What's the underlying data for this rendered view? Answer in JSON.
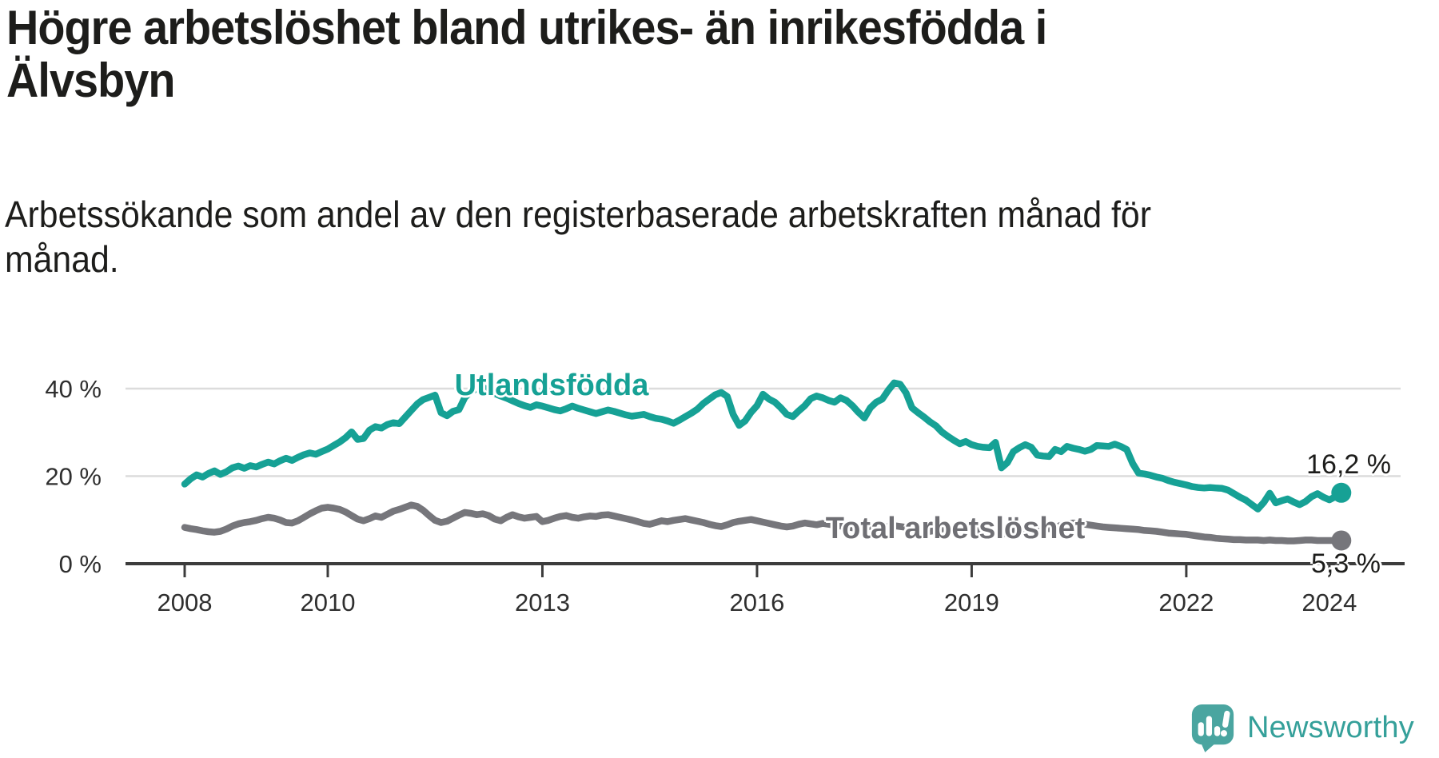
{
  "header": {
    "title_line1": "Högre arbetslöshet bland utrikes- än inrikesfödda i",
    "title_line2": "Älvsbyn",
    "subtitle_line1": "Arbetssökande som andel av den registerbaserade arbetskraften månad för",
    "subtitle_line2": "månad."
  },
  "footer": {
    "brand": "Newsworthy"
  },
  "colors": {
    "accent_teal": "#16a195",
    "logo_teal": "#4aa5a0",
    "series_gray": "#76767b",
    "grid": "#dcdcdc",
    "axis": "#3c3c3c",
    "text": "#1d1d1b"
  },
  "chart_data": {
    "type": "line",
    "title": "Högre arbetslöshet bland utrikes- än inrikesfödda i Älvsbyn",
    "subtitle": "Arbetssökande som andel av den registerbaserade arbetskraften månad för månad.",
    "unit": "%",
    "frequency": "monthly",
    "x_start": "2008-01",
    "x_end": "2024-03",
    "ylim": [
      0,
      44
    ],
    "grid": "horizontal",
    "legend_position": "inline",
    "y_ticks": [
      {
        "label": "0 %",
        "value": 0
      },
      {
        "label": "20 %",
        "value": 20
      },
      {
        "label": "40 %",
        "value": 40
      }
    ],
    "x_ticks": [
      {
        "label": "2008",
        "month": 0
      },
      {
        "label": "2010",
        "month": 24
      },
      {
        "label": "2013",
        "month": 60
      },
      {
        "label": "2016",
        "month": 96
      },
      {
        "label": "2019",
        "month": 132
      },
      {
        "label": "2022",
        "month": 168
      },
      {
        "label": "2024",
        "month": 192
      }
    ],
    "series": [
      {
        "name": "Utlandsfödda",
        "color": "#16a195",
        "end_value": 16.2,
        "end_label": "16,2 %",
        "values": [
          18.2,
          19.4,
          20.3,
          19.8,
          20.6,
          21.2,
          20.4,
          21.0,
          21.9,
          22.3,
          21.8,
          22.4,
          22.1,
          22.7,
          23.2,
          22.8,
          23.5,
          24.1,
          23.6,
          24.3,
          24.9,
          25.3,
          25.0,
          25.6,
          26.2,
          27.0,
          27.8,
          28.8,
          30.1,
          28.4,
          28.6,
          30.5,
          31.3,
          31.0,
          31.8,
          32.2,
          32.0,
          33.5,
          35.0,
          36.5,
          37.5,
          38.0,
          38.5,
          34.5,
          33.8,
          34.8,
          35.2,
          38.0,
          39.3,
          40.0,
          40.3,
          39.6,
          38.9,
          38.3,
          37.8,
          37.2,
          36.6,
          36.1,
          35.7,
          36.3,
          36.0,
          35.6,
          35.2,
          34.9,
          35.4,
          36.0,
          35.5,
          35.1,
          34.7,
          34.3,
          34.7,
          35.1,
          34.8,
          34.4,
          34.0,
          33.7,
          33.9,
          34.1,
          33.6,
          33.2,
          33.0,
          32.6,
          32.1,
          32.8,
          33.6,
          34.4,
          35.3,
          36.6,
          37.6,
          38.6,
          39.1,
          38.2,
          34.1,
          31.6,
          32.6,
          34.6,
          36.1,
          38.7,
          37.6,
          36.9,
          35.6,
          34.1,
          33.6,
          34.9,
          36.1,
          37.7,
          38.3,
          37.9,
          37.3,
          36.9,
          37.9,
          37.3,
          36.1,
          34.6,
          33.3,
          35.6,
          36.9,
          37.6,
          39.6,
          41.3,
          41.0,
          39.0,
          35.6,
          34.5,
          33.5,
          32.4,
          31.5,
          30.1,
          29.1,
          28.2,
          27.4,
          27.9,
          27.2,
          26.8,
          26.6,
          26.5,
          27.7,
          21.9,
          23.1,
          25.6,
          26.5,
          27.2,
          26.6,
          24.8,
          24.6,
          24.5,
          26.1,
          25.6,
          26.8,
          26.4,
          26.1,
          25.7,
          26.1,
          27.0,
          26.9,
          26.8,
          27.3,
          26.8,
          26.1,
          22.9,
          20.7,
          20.5,
          20.2,
          19.8,
          19.5,
          19.0,
          18.6,
          18.3,
          18.0,
          17.6,
          17.4,
          17.3,
          17.4,
          17.3,
          17.2,
          16.8,
          16.0,
          15.2,
          14.5,
          13.5,
          12.5,
          14.0,
          16.1,
          13.9,
          14.4,
          14.8,
          14.1,
          13.5,
          14.2,
          15.3,
          16.0,
          15.2,
          14.6,
          15.3,
          16.2
        ]
      },
      {
        "name": "Total arbetslöshet",
        "color": "#76767b",
        "end_value": 5.3,
        "end_label": "5,3 %",
        "values": [
          8.3,
          8.0,
          7.8,
          7.5,
          7.3,
          7.2,
          7.4,
          7.9,
          8.6,
          9.1,
          9.4,
          9.6,
          9.9,
          10.3,
          10.6,
          10.4,
          10.0,
          9.4,
          9.3,
          9.8,
          10.6,
          11.4,
          12.1,
          12.7,
          12.9,
          12.7,
          12.4,
          11.8,
          11.0,
          10.2,
          9.8,
          10.3,
          10.9,
          10.6,
          11.3,
          12.0,
          12.4,
          12.9,
          13.4,
          13.1,
          12.2,
          11.0,
          9.9,
          9.4,
          9.7,
          10.4,
          11.1,
          11.7,
          11.5,
          11.2,
          11.4,
          11.0,
          10.2,
          9.8,
          10.6,
          11.2,
          10.7,
          10.4,
          10.6,
          10.8,
          9.6,
          9.9,
          10.4,
          10.8,
          11.0,
          10.6,
          10.4,
          10.7,
          10.9,
          10.8,
          11.1,
          11.2,
          10.9,
          10.6,
          10.3,
          10.0,
          9.6,
          9.2,
          9.0,
          9.4,
          9.8,
          9.6,
          9.9,
          10.1,
          10.3,
          10.0,
          9.7,
          9.4,
          9.0,
          8.7,
          8.5,
          8.9,
          9.4,
          9.7,
          9.9,
          10.1,
          9.8,
          9.5,
          9.2,
          8.9,
          8.6,
          8.4,
          8.6,
          9.0,
          9.3,
          9.1,
          8.9,
          9.2,
          9.0,
          8.8,
          8.6,
          8.4,
          8.2,
          8.0,
          8.2,
          8.5,
          8.8,
          8.6,
          8.4,
          8.7,
          8.5,
          8.3,
          8.1,
          7.9,
          7.6,
          7.4,
          7.6,
          7.9,
          8.1,
          7.9,
          7.7,
          8.0,
          7.8,
          7.6,
          7.4,
          7.2,
          7.0,
          6.8,
          7.0,
          7.4,
          7.7,
          7.5,
          7.8,
          8.0,
          8.1,
          8.0,
          8.3,
          8.8,
          9.1,
          9.3,
          9.2,
          9.0,
          8.8,
          8.6,
          8.4,
          8.3,
          8.2,
          8.1,
          8.0,
          7.9,
          7.8,
          7.6,
          7.5,
          7.4,
          7.2,
          7.0,
          6.9,
          6.8,
          6.7,
          6.5,
          6.3,
          6.1,
          6.0,
          5.8,
          5.7,
          5.6,
          5.5,
          5.5,
          5.4,
          5.4,
          5.4,
          5.3,
          5.4,
          5.3,
          5.3,
          5.2,
          5.2,
          5.3,
          5.4,
          5.4,
          5.3,
          5.3,
          5.3,
          5.3,
          5.3
        ]
      }
    ]
  }
}
